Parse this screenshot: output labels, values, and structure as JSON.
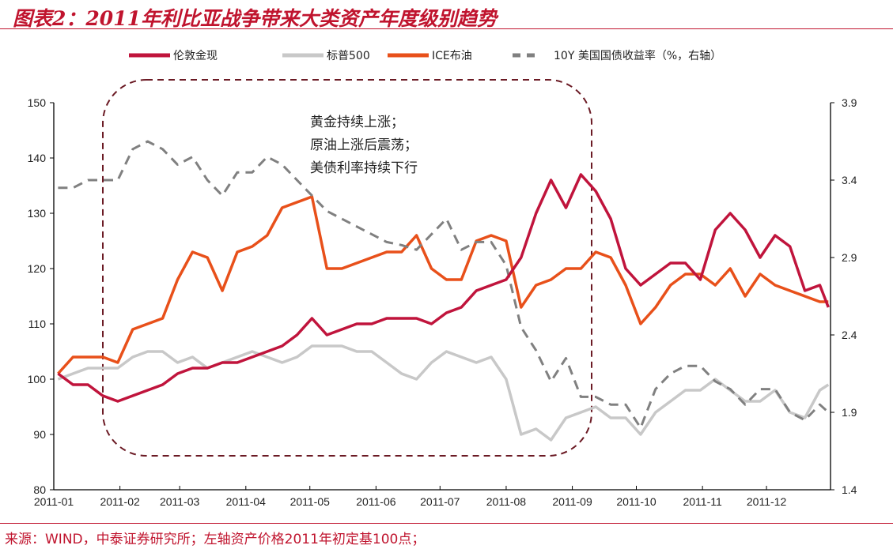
{
  "header": {
    "title": "图表2：2011年利比亚战争带来大类资产年度级别趋势"
  },
  "footer": {
    "source": "来源：WIND，中泰证券研究所；左轴资产价格2011年初定基100点；"
  },
  "chart_data": {
    "type": "line",
    "title": "图表2：2011年利比亚战争带来大类资产年度级别趋势",
    "legend_position": "top",
    "grid": false,
    "x_ticks": [
      "2011-01",
      "2011-02",
      "2011-03",
      "2011-04",
      "2011-05",
      "2011-06",
      "2011-07",
      "2011-08",
      "2011-09",
      "2011-10",
      "2011-11",
      "2011-12"
    ],
    "y_left": {
      "range": [
        80,
        150
      ],
      "ticks": [
        "80",
        "90",
        "100",
        "110",
        "120",
        "130",
        "140",
        "150"
      ]
    },
    "y_right": {
      "range": [
        1.4,
        3.9
      ],
      "ticks": [
        "1.4",
        "1.9",
        "2.4",
        "2.9",
        "3.4",
        "3.9"
      ]
    },
    "annotation": [
      "黄金持续上涨；",
      "原油上涨后震荡；",
      "美债利率持续下行"
    ],
    "x": [
      "2011-01-03",
      "2011-01-10",
      "2011-01-17",
      "2011-01-24",
      "2011-01-31",
      "2011-02-07",
      "2011-02-14",
      "2011-02-21",
      "2011-02-28",
      "2011-03-07",
      "2011-03-14",
      "2011-03-21",
      "2011-03-28",
      "2011-04-04",
      "2011-04-11",
      "2011-04-18",
      "2011-04-25",
      "2011-05-02",
      "2011-05-09",
      "2011-05-16",
      "2011-05-23",
      "2011-05-30",
      "2011-06-06",
      "2011-06-13",
      "2011-06-20",
      "2011-06-27",
      "2011-07-04",
      "2011-07-11",
      "2011-07-18",
      "2011-07-25",
      "2011-08-01",
      "2011-08-08",
      "2011-08-15",
      "2011-08-22",
      "2011-08-29",
      "2011-09-05",
      "2011-09-12",
      "2011-09-19",
      "2011-09-26",
      "2011-10-03",
      "2011-10-10",
      "2011-10-17",
      "2011-10-24",
      "2011-10-31",
      "2011-11-07",
      "2011-11-14",
      "2011-11-21",
      "2011-11-28",
      "2011-12-05",
      "2011-12-12",
      "2011-12-19",
      "2011-12-26",
      "2011-12-30"
    ],
    "series": [
      {
        "name": "伦敦金现",
        "axis": "left",
        "color": "#c0143c",
        "dashed": false,
        "values": [
          101,
          99,
          99,
          97,
          96,
          97,
          98,
          99,
          101,
          102,
          102,
          103,
          103,
          104,
          105,
          106,
          108,
          111,
          108,
          109,
          110,
          110,
          111,
          111,
          111,
          110,
          112,
          113,
          116,
          117,
          118,
          122,
          130,
          136,
          131,
          137,
          134,
          129,
          120,
          117,
          119,
          121,
          121,
          118,
          127,
          130,
          127,
          122,
          126,
          124,
          116,
          117,
          113
        ]
      },
      {
        "name": "标普500",
        "axis": "left",
        "color": "#c8c8c8",
        "dashed": false,
        "values": [
          100,
          101,
          102,
          102,
          102,
          104,
          105,
          105,
          103,
          104,
          102,
          103,
          104,
          105,
          104,
          103,
          104,
          106,
          106,
          106,
          105,
          105,
          103,
          101,
          100,
          103,
          105,
          104,
          103,
          104,
          100,
          90,
          91,
          89,
          93,
          94,
          95,
          93,
          93,
          90,
          94,
          96,
          98,
          98,
          100,
          98,
          96,
          96,
          98,
          94,
          93,
          98,
          99
        ]
      },
      {
        "name": "ICE布油",
        "axis": "left",
        "color": "#e8501a",
        "dashed": false,
        "values": [
          101,
          104,
          104,
          104,
          103,
          109,
          110,
          111,
          118,
          123,
          122,
          116,
          123,
          124,
          126,
          131,
          132,
          133,
          120,
          120,
          121,
          122,
          123,
          123,
          126,
          120,
          118,
          118,
          125,
          126,
          125,
          113,
          117,
          118,
          120,
          120,
          123,
          122,
          117,
          110,
          113,
          117,
          119,
          119,
          117,
          120,
          115,
          119,
          117,
          116,
          115,
          114,
          114
        ]
      },
      {
        "name": "10Y 美国国债收益率（%，右轴）",
        "axis": "right",
        "color": "#808080",
        "dashed": true,
        "values": [
          3.35,
          3.35,
          3.4,
          3.4,
          3.4,
          3.6,
          3.65,
          3.6,
          3.5,
          3.55,
          3.4,
          3.3,
          3.45,
          3.45,
          3.55,
          3.5,
          3.4,
          3.3,
          3.2,
          3.15,
          3.1,
          3.05,
          3.0,
          2.98,
          2.95,
          3.05,
          3.15,
          2.95,
          3.0,
          3.0,
          2.85,
          2.45,
          2.3,
          2.1,
          2.25,
          2.0,
          2.0,
          1.95,
          1.95,
          1.8,
          2.05,
          2.15,
          2.2,
          2.2,
          2.1,
          2.05,
          1.95,
          2.05,
          2.05,
          1.9,
          1.85,
          1.95,
          1.9
        ]
      }
    ]
  }
}
